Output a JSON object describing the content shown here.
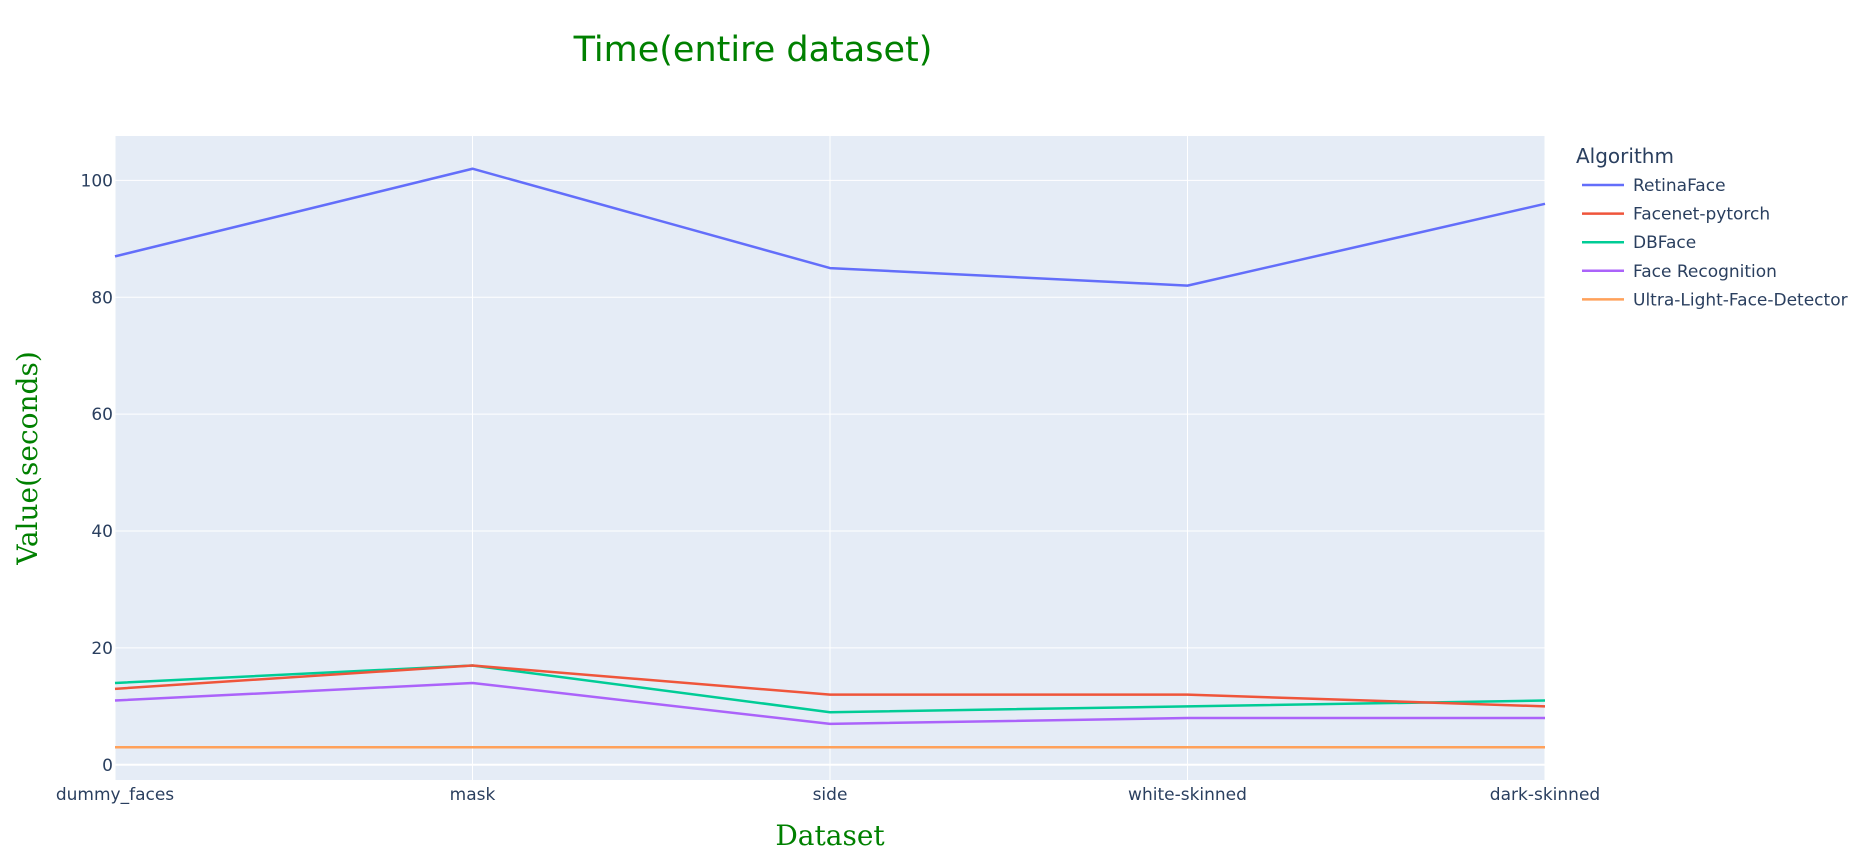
{
  "chart_data": {
    "type": "line",
    "title": "Time(entire dataset)",
    "xlabel": "Dataset",
    "ylabel": "Value(seconds)",
    "categories": [
      "dummy_faces",
      "mask",
      "side",
      "white-skinned",
      "dark-skinned"
    ],
    "ylim": [
      -2.6,
      107.6
    ],
    "yticks": [
      0,
      20,
      40,
      60,
      80,
      100
    ],
    "grid": true,
    "legend": {
      "title": "Algorithm",
      "placement": "right"
    },
    "series": [
      {
        "name": "RetinaFace",
        "color": "#636efa",
        "values": [
          87,
          102,
          85,
          82,
          96
        ]
      },
      {
        "name": "Facenet-pytorch",
        "color": "#EF553B",
        "values": [
          13,
          17,
          12,
          12,
          10
        ]
      },
      {
        "name": "DBFace",
        "color": "#00cc96",
        "values": [
          14,
          17,
          9,
          10,
          11
        ]
      },
      {
        "name": "Face Recognition",
        "color": "#ab63fa",
        "values": [
          11,
          14,
          7,
          8,
          8
        ]
      },
      {
        "name": "Ultra-Light-Face-Detector",
        "color": "#FFA15A",
        "values": [
          3,
          3,
          3,
          3,
          3
        ]
      }
    ]
  },
  "colors": {
    "title": "#008000",
    "axis_title": "#008000",
    "tick_label": "#2a3f5f",
    "legend_text": "#2a3f5f",
    "plot_bg": "#e5ecf6",
    "grid": "#ffffff"
  }
}
